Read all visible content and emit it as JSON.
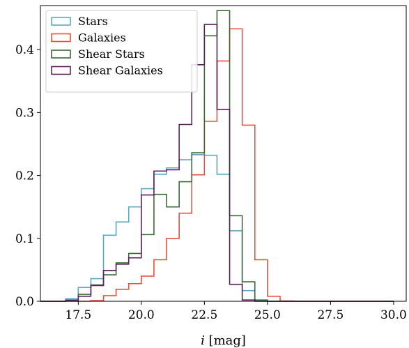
{
  "chart_data": {
    "type": "histogram",
    "title": "",
    "xlabel": "i [mag]",
    "xlabel_italic": "i",
    "xlabel_rest": " [mag]",
    "ylabel": "",
    "xlim": [
      16.0,
      30.5
    ],
    "ylim": [
      0,
      0.47
    ],
    "xticks": [
      17.5,
      20.0,
      22.5,
      25.0,
      27.5,
      30.0
    ],
    "xtick_labels": [
      "17.5",
      "20.0",
      "22.5",
      "25.0",
      "27.5",
      "30.0"
    ],
    "yticks": [
      0.0,
      0.1,
      0.2,
      0.3,
      0.4
    ],
    "ytick_labels": [
      "0.0",
      "0.1",
      "0.2",
      "0.3",
      "0.4"
    ],
    "grid": false,
    "legend_position": "top-left",
    "bin_edges": [
      16.0,
      16.5,
      17.0,
      17.5,
      18.0,
      18.5,
      19.0,
      19.5,
      20.0,
      20.5,
      21.0,
      21.5,
      22.0,
      22.5,
      23.0,
      23.5,
      24.0,
      24.5,
      25.0,
      25.5,
      26.0,
      26.5,
      27.0,
      27.5,
      28.0,
      28.5,
      29.0,
      29.5,
      30.0
    ],
    "series": [
      {
        "name": "Stars",
        "color": "#5ba8c0",
        "values": [
          0.0,
          0.0,
          0.004,
          0.022,
          0.036,
          0.105,
          0.126,
          0.15,
          0.179,
          0.202,
          0.212,
          0.225,
          0.233,
          0.232,
          0.202,
          0.112,
          0.017,
          0.001,
          0.0,
          0.0,
          0.0,
          0.0,
          0.0,
          0.0,
          0.0,
          0.0,
          0.0,
          0.0
        ]
      },
      {
        "name": "Galaxies",
        "color": "#e8503a",
        "values": [
          0.0,
          0.0,
          0.0,
          0.0,
          0.001,
          0.009,
          0.019,
          0.028,
          0.04,
          0.066,
          0.1,
          0.14,
          0.201,
          0.286,
          0.382,
          0.433,
          0.28,
          0.066,
          0.008,
          0.0005,
          0.0,
          0.0,
          0.0,
          0.0,
          0.0,
          0.0,
          0.0,
          0.0
        ]
      },
      {
        "name": "Shear Stars",
        "color": "#3a6b35",
        "values": [
          0.0,
          0.0,
          0.002,
          0.011,
          0.026,
          0.042,
          0.061,
          0.076,
          0.106,
          0.17,
          0.15,
          0.19,
          0.236,
          0.422,
          0.462,
          0.136,
          0.031,
          0.002,
          0.0,
          0.0,
          0.0,
          0.0,
          0.0,
          0.0,
          0.0,
          0.0,
          0.0,
          0.0
        ]
      },
      {
        "name": "Shear Galaxies",
        "color": "#5c1f5c",
        "values": [
          0.0,
          0.0,
          0.001,
          0.008,
          0.025,
          0.049,
          0.059,
          0.069,
          0.169,
          0.207,
          0.209,
          0.281,
          0.376,
          0.44,
          0.305,
          0.027,
          0.002,
          0.0,
          0.0,
          0.0,
          0.0,
          0.0,
          0.0,
          0.0,
          0.0,
          0.0,
          0.0,
          0.0
        ]
      }
    ]
  }
}
